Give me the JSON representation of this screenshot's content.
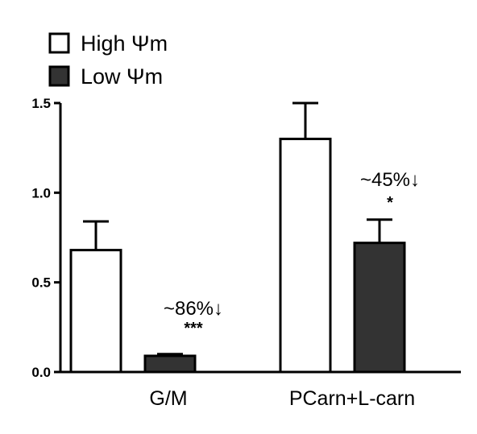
{
  "chart_data": {
    "type": "bar",
    "categories": [
      "G/M",
      "PCarn+L-carn"
    ],
    "series": [
      {
        "name": "High Ψm",
        "values": [
          0.68,
          1.3
        ],
        "errors": [
          0.16,
          0.2
        ],
        "color": "#ffffff"
      },
      {
        "name": "Low Ψm",
        "values": [
          0.09,
          0.72
        ],
        "errors": [
          0.01,
          0.13
        ],
        "color": "#333333"
      }
    ],
    "ylim": [
      0,
      1.5
    ],
    "yticks": [
      "0.0",
      "0.5",
      "1.0",
      "1.5"
    ],
    "legend": "top-left",
    "grid": false,
    "annotations": [
      {
        "category": 0,
        "text": "~86%↓",
        "sig": "***"
      },
      {
        "category": 1,
        "text": "~45%↓",
        "sig": "*"
      }
    ]
  }
}
